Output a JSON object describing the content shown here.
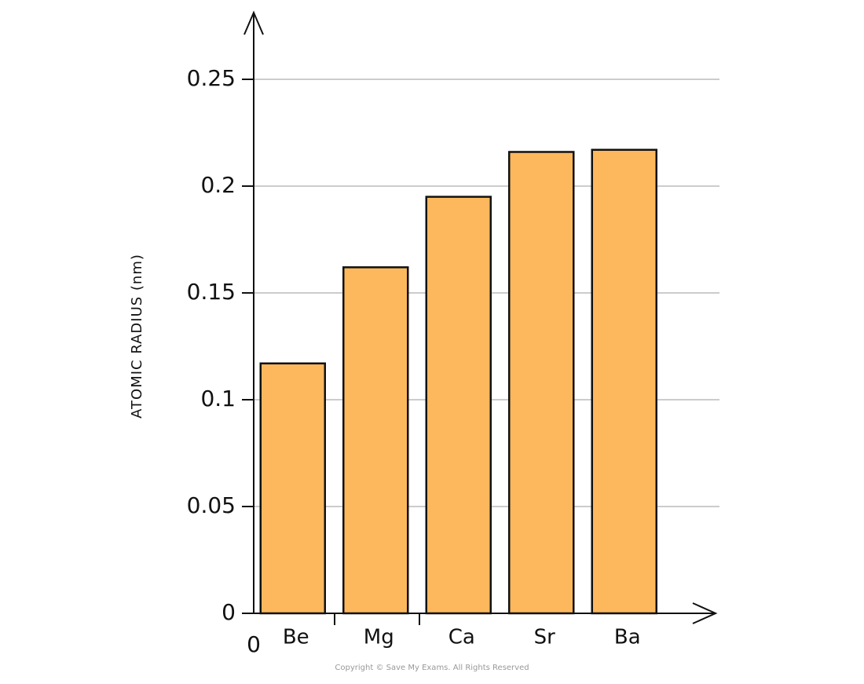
{
  "chart_data": {
    "type": "bar",
    "y_label": "ATOMIC RADIUS (nm)",
    "origin_label": "0",
    "categories": [
      "Be",
      "Mg",
      "Ca",
      "Sr",
      "Ba"
    ],
    "values": [
      0.117,
      0.162,
      0.195,
      0.216,
      0.217
    ],
    "color": "#fdb85d",
    "ylim": [
      0,
      0.28
    ],
    "yticks": [
      0,
      0.05,
      0.1,
      0.15,
      0.2,
      0.25
    ],
    "grid": true,
    "copyright": "Copyright © Save My Exams. All Rights Reserved"
  }
}
